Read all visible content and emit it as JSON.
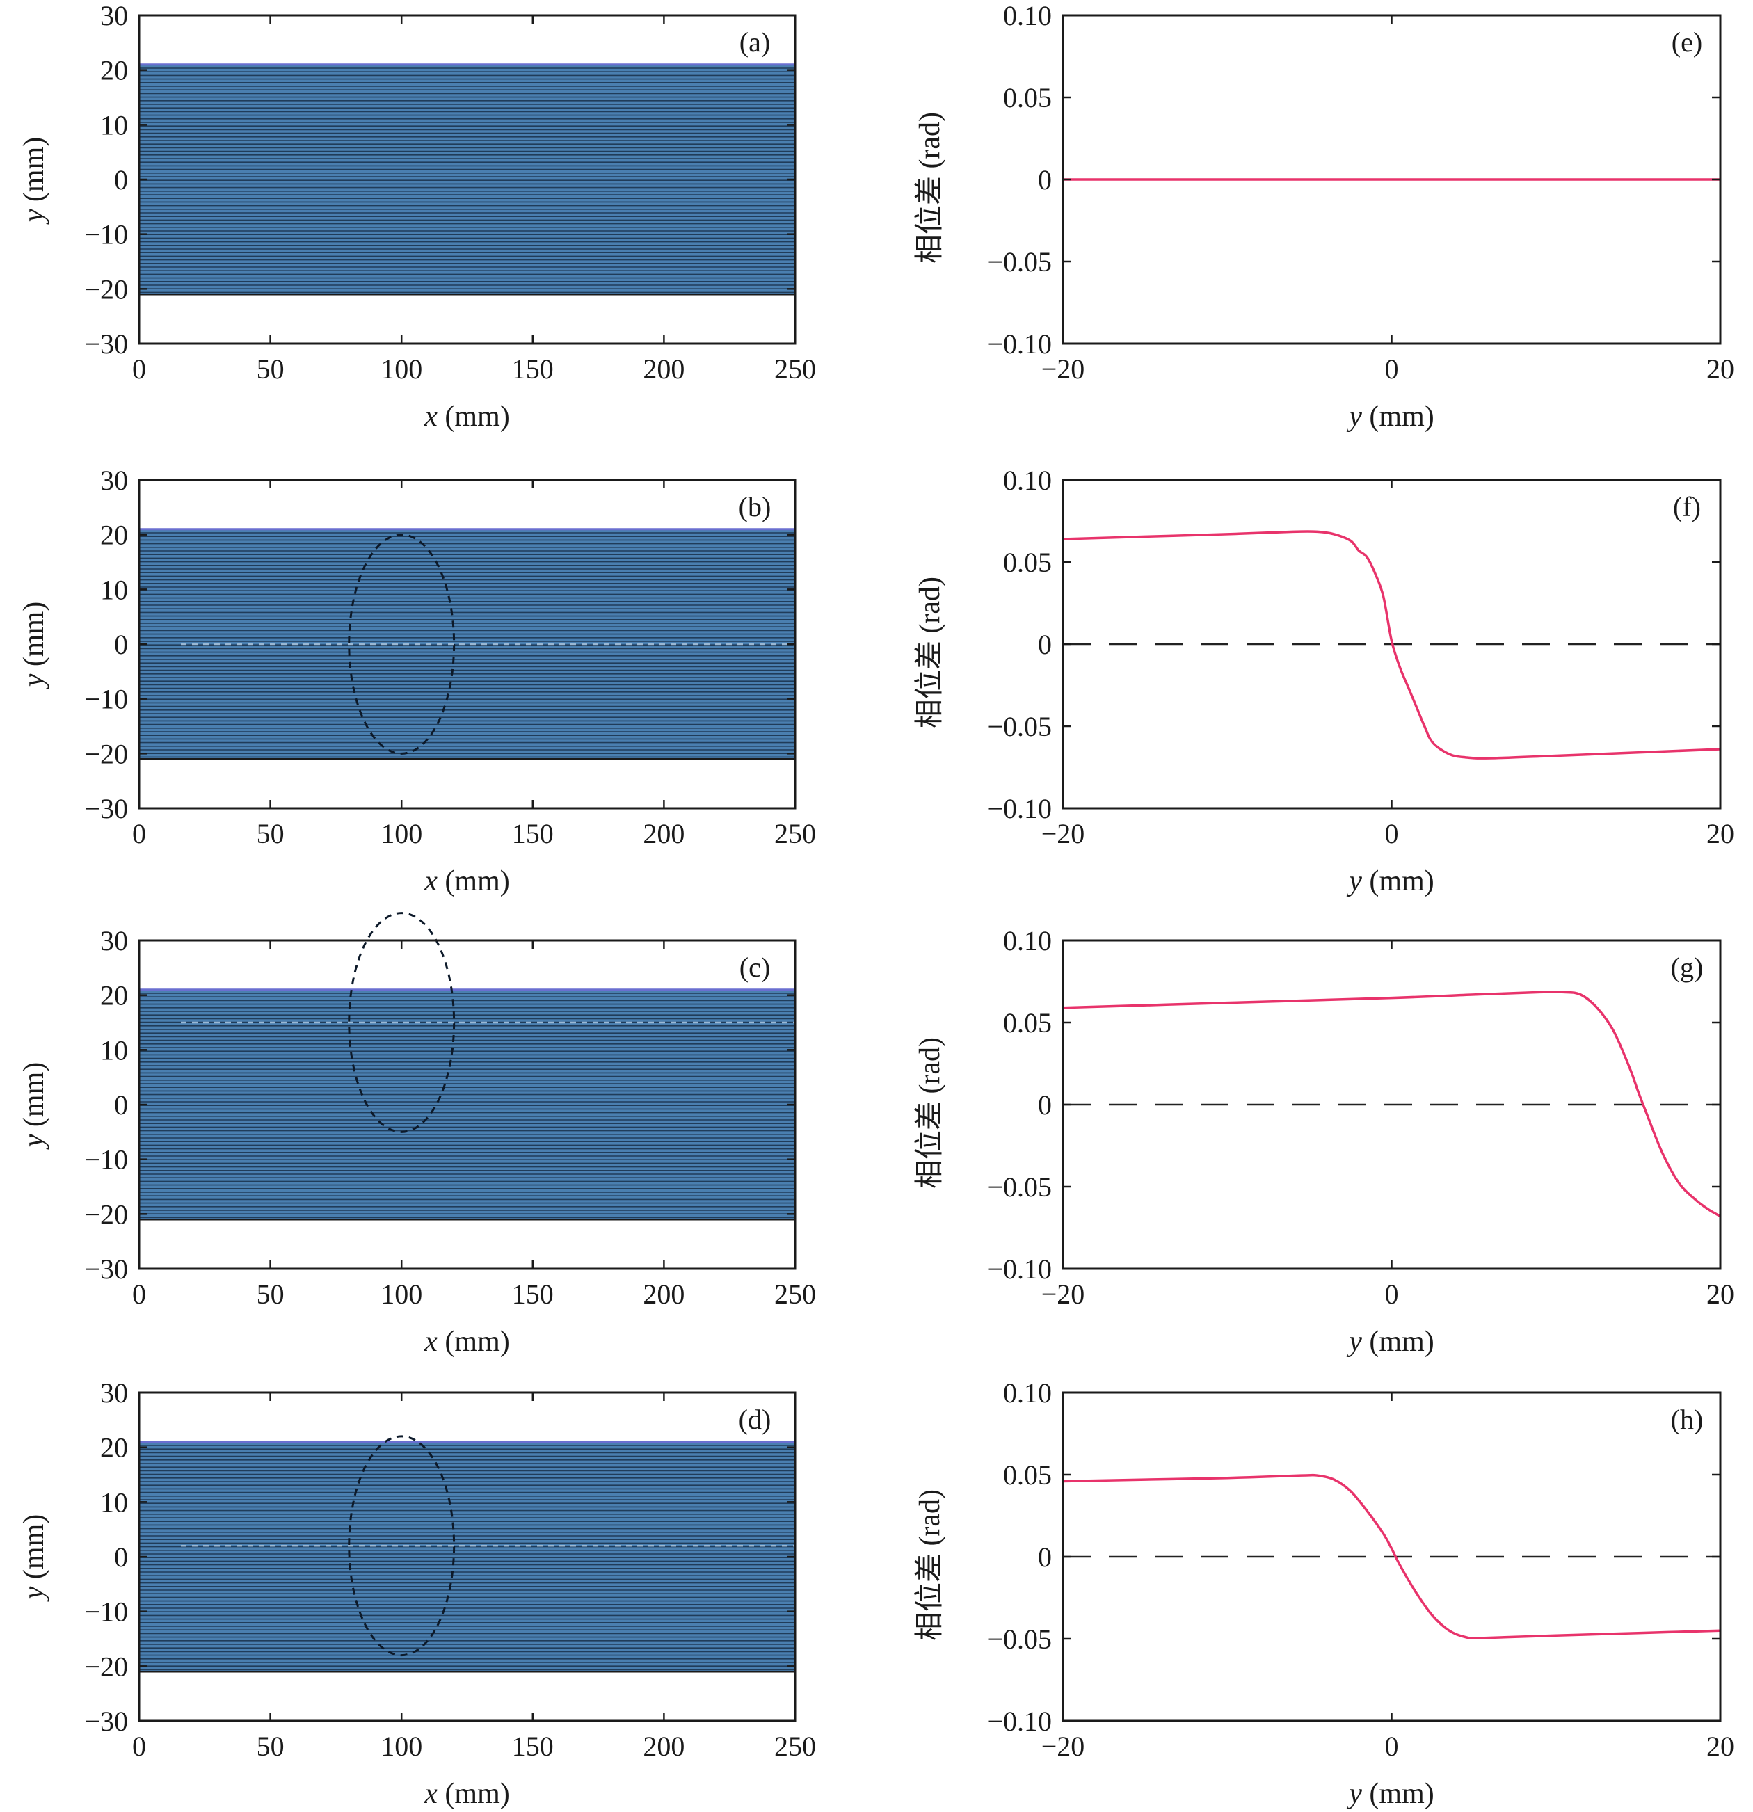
{
  "figure": {
    "left_panels": {
      "xlabel_var": "x",
      "xlabel_unit": " (mm)",
      "ylabel_var": "y",
      "ylabel_unit": " (mm)",
      "xticks": [
        "0",
        "50",
        "100",
        "150",
        "200",
        "250"
      ],
      "yticks": [
        "30",
        "20",
        "10",
        "0",
        "−10",
        "−20",
        "−30"
      ]
    },
    "right_panels": {
      "xlabel_var": "y",
      "xlabel_unit": " (mm)",
      "ylabel": "相位差 (rad)",
      "xticks": [
        "−20",
        "0",
        "20"
      ],
      "yticks": [
        "0.10",
        "0.05",
        "0",
        "−0.05",
        "−0.10"
      ]
    }
  },
  "colors": {
    "stripe": "#4a7fb0",
    "stripe_dark": "#1c3550",
    "band_edge": "#6a6fd0",
    "phase_curve": "#e8336b",
    "axis": "#1a1a1a",
    "reference_line": "#222222"
  },
  "chart_data": [
    {
      "type": "heatmap",
      "label": "(a)",
      "xlim": [
        0,
        250
      ],
      "ylim": [
        -30,
        30
      ],
      "xlabel": "x (mm)",
      "ylabel": "y (mm)",
      "band_y": [
        -21,
        21
      ],
      "circle": null,
      "grid": false
    },
    {
      "type": "heatmap",
      "label": "(b)",
      "xlim": [
        0,
        250
      ],
      "ylim": [
        -30,
        30
      ],
      "xlabel": "x (mm)",
      "ylabel": "y (mm)",
      "band_y": [
        -21,
        21
      ],
      "circle": {
        "cx": 100,
        "cy": 0,
        "r": 20
      },
      "grid": false
    },
    {
      "type": "heatmap",
      "label": "(c)",
      "xlim": [
        0,
        250
      ],
      "ylim": [
        -30,
        30
      ],
      "xlabel": "x (mm)",
      "ylabel": "y (mm)",
      "band_y": [
        -21,
        21
      ],
      "circle": {
        "cx": 100,
        "cy": 15,
        "r": 20
      },
      "grid": false
    },
    {
      "type": "heatmap",
      "label": "(d)",
      "xlim": [
        0,
        250
      ],
      "ylim": [
        -30,
        30
      ],
      "xlabel": "x (mm)",
      "ylabel": "y (mm)",
      "band_y": [
        -21,
        21
      ],
      "circle": {
        "cx": 100,
        "cy": 2,
        "r": 20
      },
      "grid": false
    },
    {
      "type": "line",
      "label": "(e)",
      "xlim": [
        -20,
        20
      ],
      "ylim": [
        -0.1,
        0.1
      ],
      "xlabel": "y (mm)",
      "ylabel": "相位差 (rad)",
      "zero_dashed": false,
      "x": [
        -20,
        20
      ],
      "y": [
        0,
        0
      ]
    },
    {
      "type": "line",
      "label": "(f)",
      "xlim": [
        -20,
        20
      ],
      "ylim": [
        -0.1,
        0.1
      ],
      "xlabel": "y (mm)",
      "ylabel": "相位差 (rad)",
      "zero_dashed": true,
      "x": [
        -20,
        -15,
        -10,
        -6,
        -4.5,
        -3.5,
        -2.5,
        -2,
        -1.5,
        -1,
        -0.5,
        0,
        0.5,
        1,
        1.5,
        2,
        2.5,
        3.5,
        4.5,
        6,
        10,
        15,
        20
      ],
      "y": [
        0.064,
        0.0655,
        0.067,
        0.0685,
        0.0685,
        0.067,
        0.063,
        0.057,
        0.053,
        0.043,
        0.029,
        0.002,
        -0.014,
        -0.026,
        -0.038,
        -0.05,
        -0.06,
        -0.067,
        -0.069,
        -0.0695,
        -0.068,
        -0.066,
        -0.064
      ]
    },
    {
      "type": "line",
      "label": "(g)",
      "xlim": [
        -20,
        20
      ],
      "ylim": [
        -0.1,
        0.1
      ],
      "xlabel": "y (mm)",
      "ylabel": "相位差 (rad)",
      "zero_dashed": true,
      "x": [
        -20,
        -10,
        0,
        5,
        9,
        10.5,
        11.5,
        12.5,
        13.5,
        14.5,
        15,
        15.5,
        16.5,
        17.5,
        18.5,
        19.3,
        20
      ],
      "y": [
        0.059,
        0.062,
        0.065,
        0.067,
        0.0685,
        0.0685,
        0.067,
        0.059,
        0.045,
        0.022,
        0.008,
        -0.005,
        -0.03,
        -0.048,
        -0.058,
        -0.064,
        -0.068
      ]
    },
    {
      "type": "line",
      "label": "(h)",
      "xlim": [
        -20,
        20
      ],
      "ylim": [
        -0.1,
        0.1
      ],
      "xlabel": "y (mm)",
      "ylabel": "相位差 (rad)",
      "zero_dashed": true,
      "x": [
        -20,
        -15,
        -10,
        -5.5,
        -4.5,
        -3.5,
        -2.5,
        -1.5,
        -0.5,
        0,
        0.5,
        1.5,
        2.5,
        3.5,
        4.5,
        5.5,
        10,
        15,
        20
      ],
      "y": [
        0.046,
        0.047,
        0.048,
        0.0495,
        0.0495,
        0.047,
        0.04,
        0.028,
        0.014,
        0.005,
        -0.005,
        -0.022,
        -0.036,
        -0.045,
        -0.049,
        -0.0495,
        -0.048,
        -0.0465,
        -0.045
      ]
    }
  ]
}
